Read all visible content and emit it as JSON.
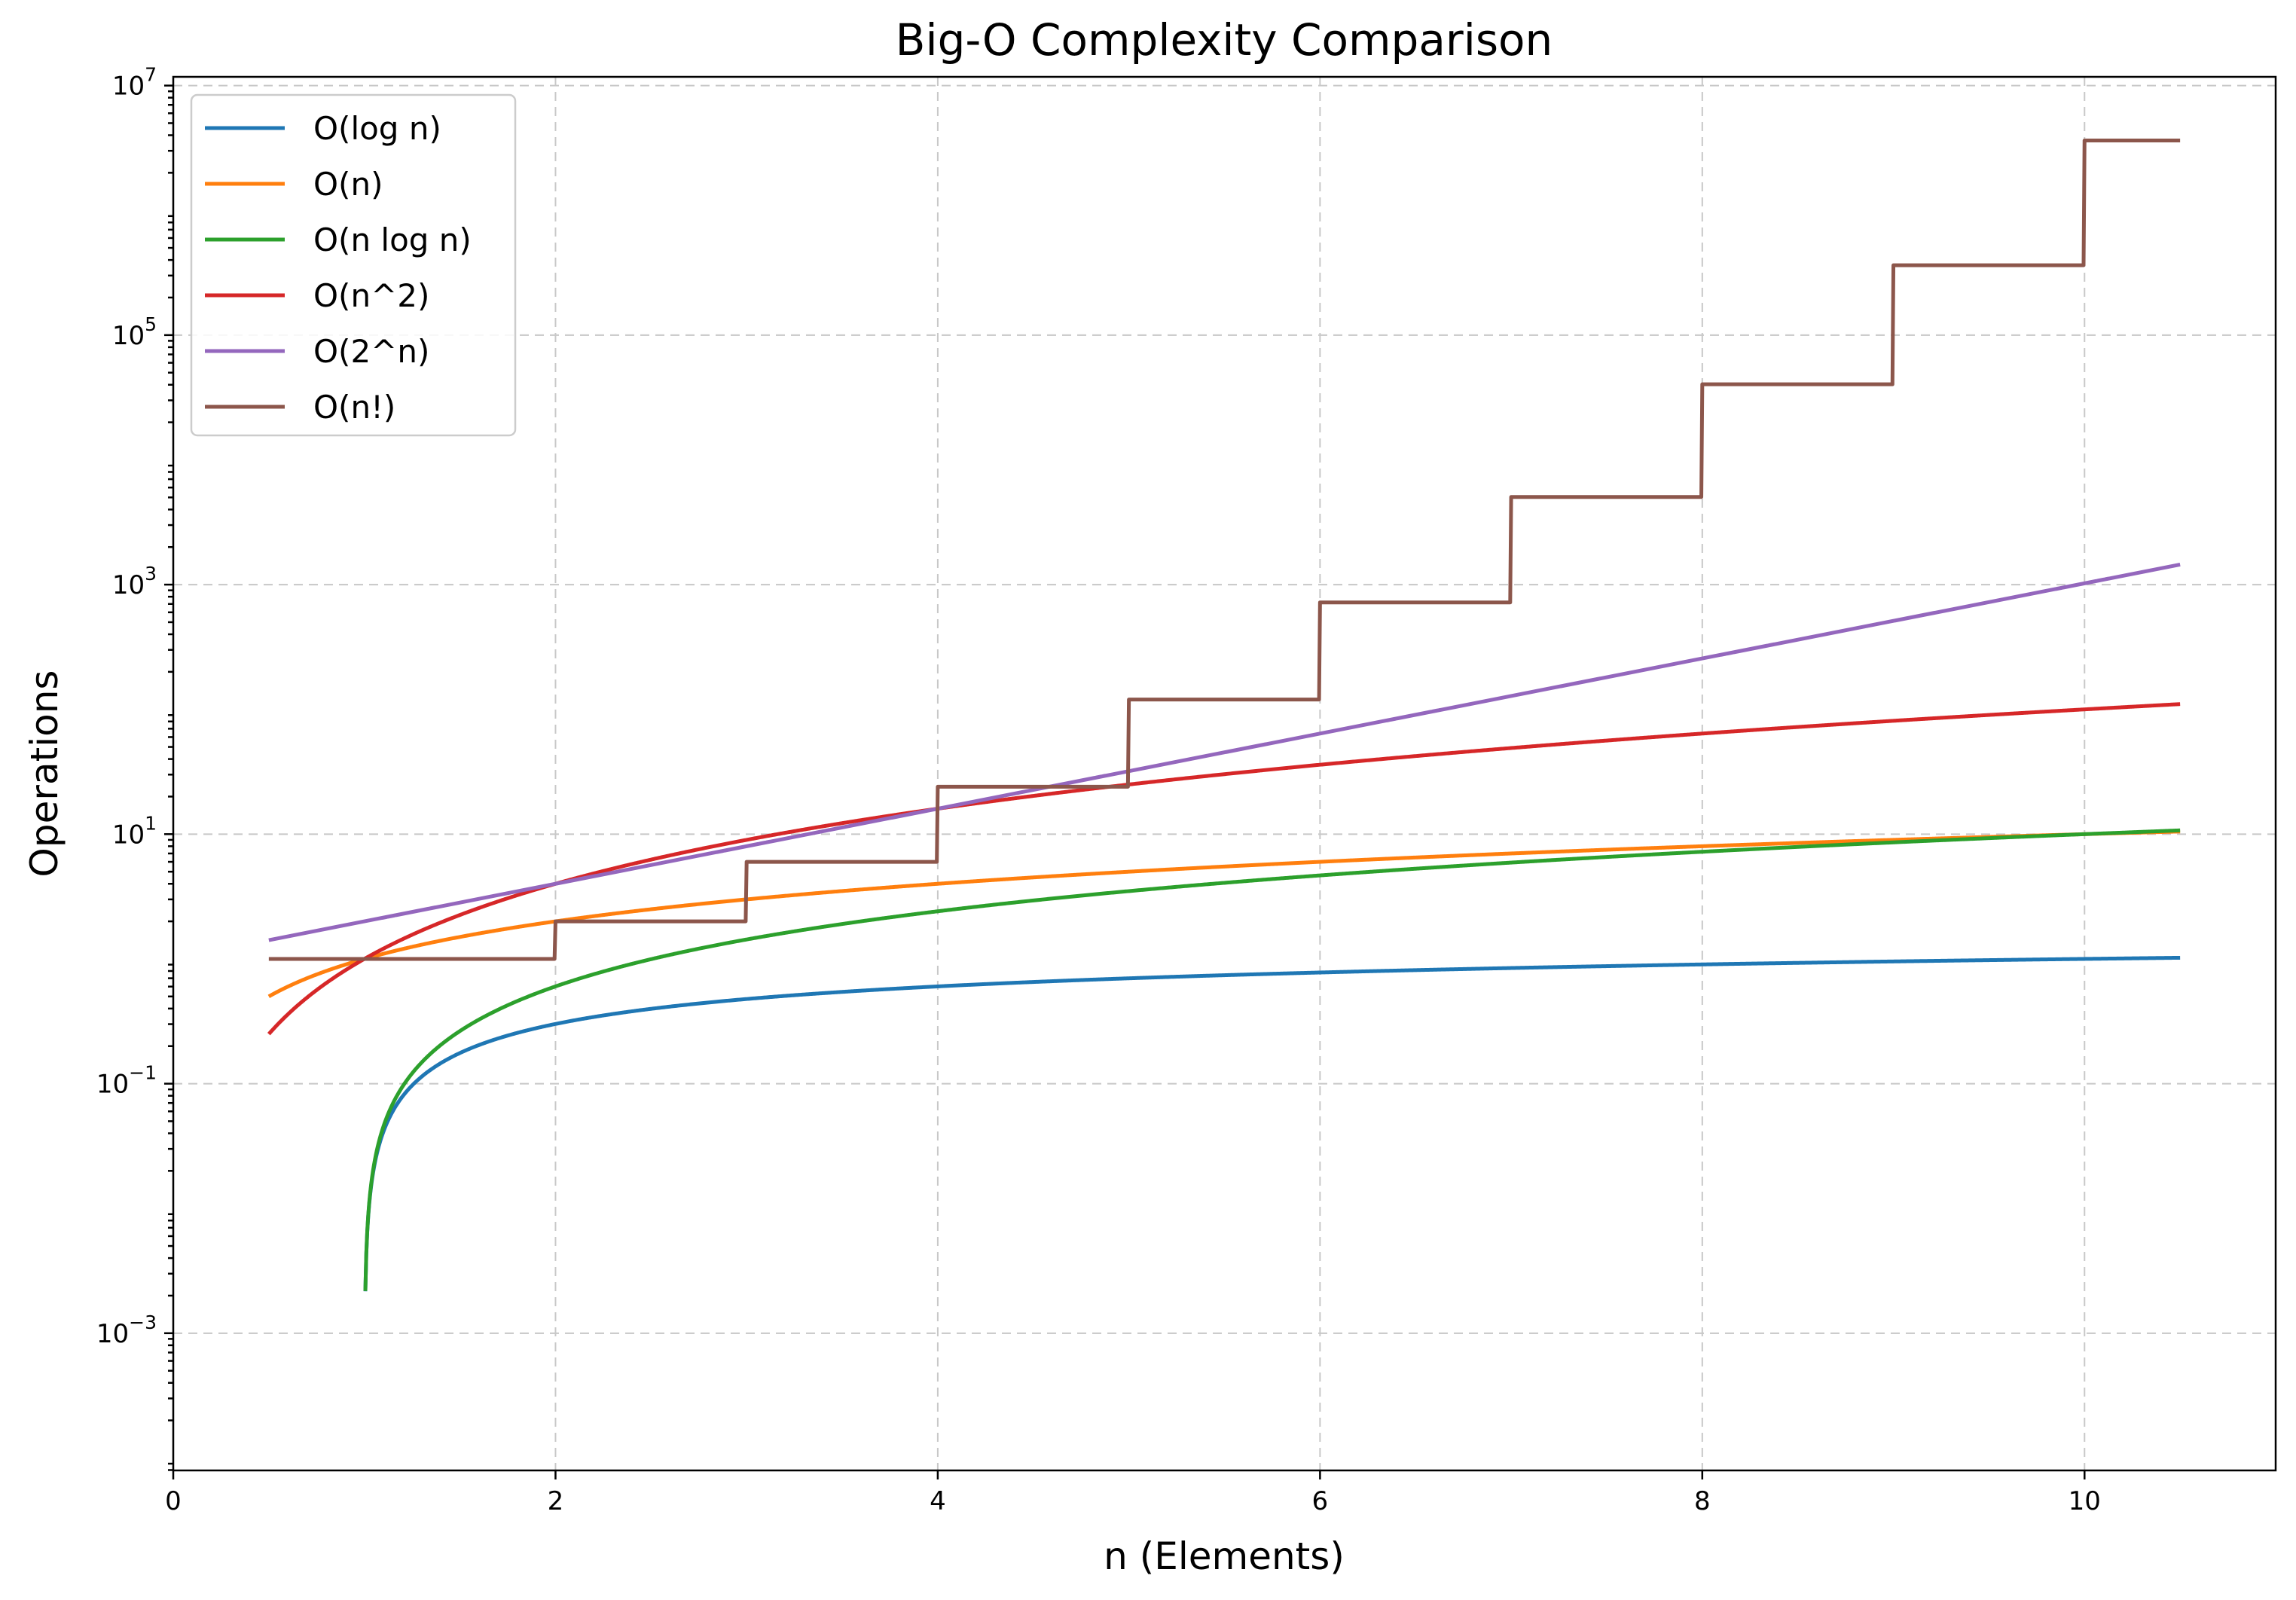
{
  "chart_data": {
    "type": "line",
    "title": "Big-O Complexity Comparison",
    "xlabel": "n (Elements)",
    "ylabel": "Operations",
    "yscale": "log",
    "xlim": [
      0,
      11
    ],
    "ylim_log10": [
      -4.1,
      7.07
    ],
    "grid": true,
    "legend_position": "upper-left",
    "x_range": [
      0.5,
      10.5
    ],
    "x_ticks": [
      {
        "value": 0,
        "label": "0"
      },
      {
        "value": 2,
        "label": "2"
      },
      {
        "value": 4,
        "label": "4"
      },
      {
        "value": 6,
        "label": "6"
      },
      {
        "value": 8,
        "label": "8"
      },
      {
        "value": 10,
        "label": "10"
      }
    ],
    "y_ticks": [
      {
        "exp": -3,
        "base": "10",
        "sup": "−3"
      },
      {
        "exp": -1,
        "base": "10",
        "sup": "−1"
      },
      {
        "exp": 1,
        "base": "10",
        "sup": "1"
      },
      {
        "exp": 3,
        "base": "10",
        "sup": "3"
      },
      {
        "exp": 5,
        "base": "10",
        "sup": "5"
      },
      {
        "exp": 7,
        "base": "10",
        "sup": "7"
      }
    ],
    "series": [
      {
        "name": "O(log n)",
        "formula": "log",
        "color": "#1f77b4"
      },
      {
        "name": "O(n)",
        "formula": "linear",
        "color": "#ff7f0e"
      },
      {
        "name": "O(n log n)",
        "formula": "nlogn",
        "color": "#2ca02c"
      },
      {
        "name": "O(n^2)",
        "formula": "quadratic",
        "color": "#d62728"
      },
      {
        "name": "O(2^n)",
        "formula": "exponential",
        "color": "#9467bd"
      },
      {
        "name": "O(n!)",
        "formula": "factorial",
        "color": "#8c564b"
      }
    ]
  }
}
